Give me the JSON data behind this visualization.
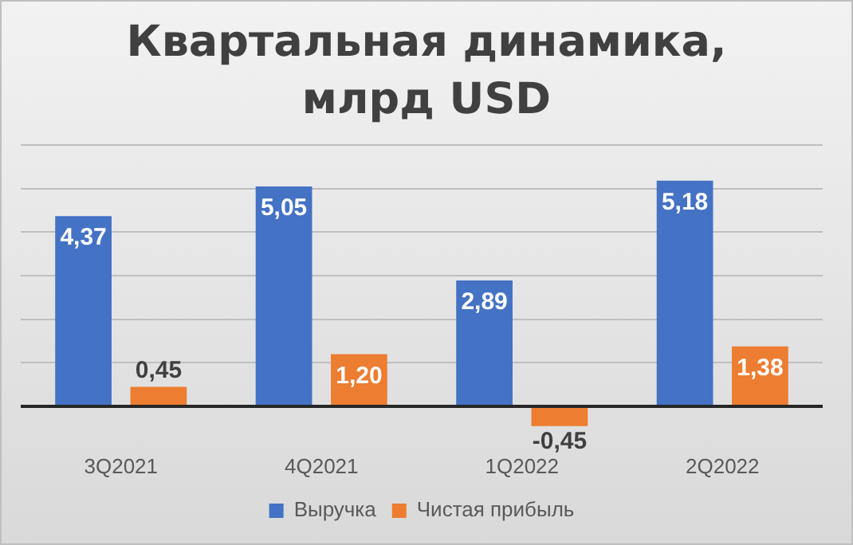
{
  "chart_data": {
    "type": "bar",
    "title": "Квартальная динамика, млрд USD",
    "categories": [
      "3Q2021",
      "4Q2021",
      "1Q2022",
      "2Q2022"
    ],
    "series": [
      {
        "name": "Выручка",
        "color": "#4472c4",
        "values": [
          4.37,
          5.05,
          2.89,
          5.18
        ],
        "value_labels": [
          "4,37",
          "5,05",
          "2,89",
          "5,18"
        ]
      },
      {
        "name": "Чистая прибыль",
        "color": "#ed7d31",
        "values": [
          0.45,
          1.2,
          -0.45,
          1.38
        ],
        "value_labels": [
          "0,45",
          "1,20",
          "-0,45",
          "1,38"
        ]
      }
    ],
    "yticks": [
      {
        "value": 0,
        "label": null
      },
      {
        "value": 1,
        "label": null
      },
      {
        "value": 2,
        "label": null
      },
      {
        "value": 3,
        "label": null
      },
      {
        "value": 4,
        "label": null
      },
      {
        "value": 5,
        "label": null
      },
      {
        "value": 6,
        "label": null
      }
    ],
    "tick_labels": "x",
    "grid": "y",
    "legend": "bottom"
  }
}
